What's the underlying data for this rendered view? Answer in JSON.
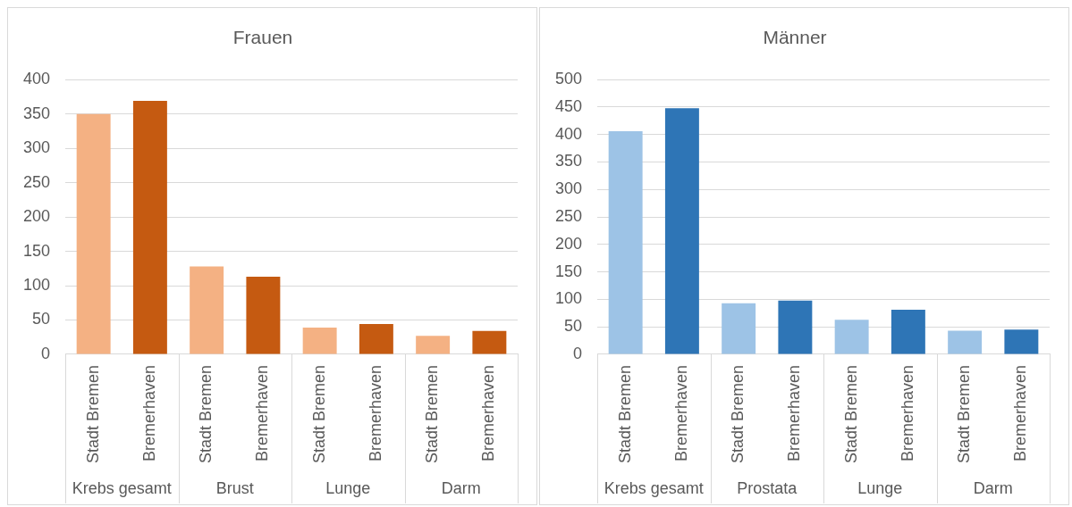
{
  "chart_data": [
    {
      "type": "bar",
      "title": "Frauen",
      "categories": [
        "Stadt Bremen",
        "Bremerhaven",
        "Stadt Bremen",
        "Bremerhaven",
        "Stadt Bremen",
        "Bremerhaven",
        "Stadt Bremen",
        "Bremerhaven"
      ],
      "values": [
        350,
        369,
        128,
        113,
        39,
        44,
        27,
        34
      ],
      "colors": [
        "#f4b183",
        "#c55a11",
        "#f4b183",
        "#c55a11",
        "#f4b183",
        "#c55a11",
        "#f4b183",
        "#c55a11"
      ],
      "annotations": [
        "Krebs gesamt",
        "Brust",
        "Lunge",
        "Darm"
      ],
      "ylim": [
        0,
        400
      ],
      "yticks": [
        0,
        50,
        100,
        150,
        200,
        250,
        300,
        350,
        400
      ],
      "grid": "y"
    },
    {
      "type": "bar",
      "title": "Männer",
      "categories": [
        "Stadt Bremen",
        "Bremerhaven",
        "Stadt Bremen",
        "Bremerhaven",
        "Stadt Bremen",
        "Bremerhaven",
        "Stadt Bremen",
        "Bremerhaven"
      ],
      "values": [
        406,
        448,
        93,
        98,
        63,
        81,
        43,
        45
      ],
      "colors": [
        "#9dc3e6",
        "#2e75b6",
        "#9dc3e6",
        "#2e75b6",
        "#9dc3e6",
        "#2e75b6",
        "#9dc3e6",
        "#2e75b6"
      ],
      "annotations": [
        "Krebs gesamt",
        "Prostata",
        "Lunge",
        "Darm"
      ],
      "ylim": [
        0,
        500
      ],
      "yticks": [
        0,
        50,
        100,
        150,
        200,
        250,
        300,
        350,
        400,
        450,
        500
      ],
      "grid": "y"
    }
  ]
}
